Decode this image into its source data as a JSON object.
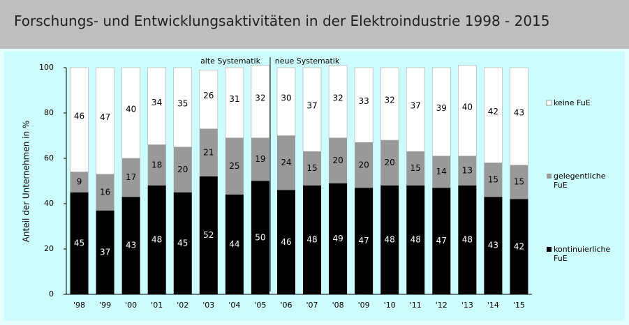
{
  "chart_data": {
    "type": "stacked_bar",
    "title": "Forschungs- und Entwicklungsaktivitäten in der Elektroindustrie 1998 - 2015",
    "y_label": "Anteil der Unternehmen in %",
    "annotations": [
      "alte Systematik",
      "neue Systematik"
    ],
    "categories": [
      "'98",
      "'99",
      "'00",
      "'01",
      "'02",
      "'03",
      "'04",
      "'05",
      "'06",
      "'07",
      "'08",
      "'09",
      "'10",
      "'11",
      "'12",
      "'13",
      "'14",
      "'15"
    ],
    "series": [
      {
        "name": "kontinuierliche FuE",
        "color": "#000000",
        "values": [
          45,
          37,
          43,
          48,
          45,
          52,
          44,
          50,
          46,
          48,
          49,
          47,
          48,
          48,
          47,
          48,
          43,
          42
        ]
      },
      {
        "name": "gelegentliche FuE",
        "color": "#999999",
        "values": [
          9,
          16,
          17,
          18,
          20,
          21,
          25,
          19,
          24,
          15,
          20,
          20,
          20,
          15,
          14,
          13,
          15,
          15
        ]
      },
      {
        "name": "keine FuE",
        "color": "#ffffff",
        "values": [
          46,
          47,
          40,
          34,
          35,
          26,
          31,
          32,
          30,
          37,
          32,
          33,
          32,
          37,
          39,
          40,
          42,
          43
        ]
      }
    ],
    "ylim": [
      0,
      100
    ],
    "yticks": [
      0,
      20,
      40,
      60,
      80,
      100
    ],
    "grid": false,
    "legend": "right"
  }
}
